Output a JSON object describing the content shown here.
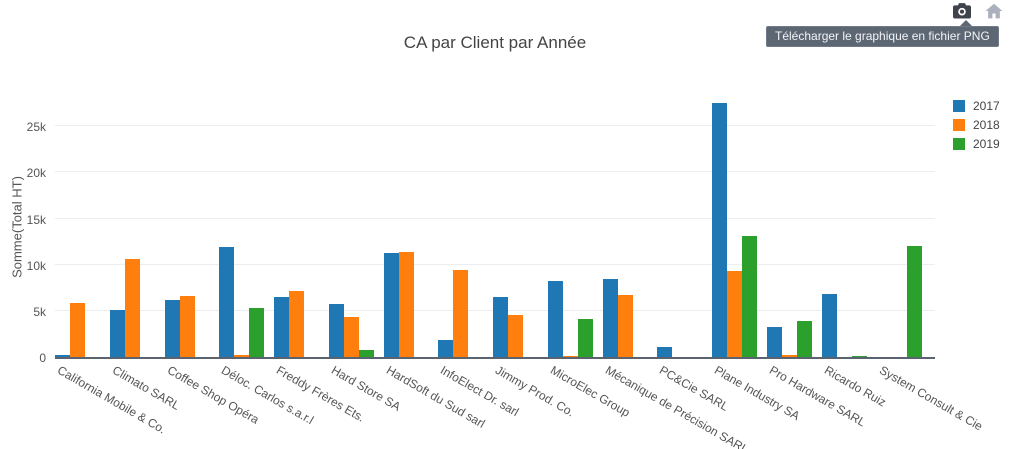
{
  "tooltip": {
    "text": "Télécharger le graphique en fichier PNG"
  },
  "modebar": {
    "icons": [
      "camera-icon",
      "home-icon"
    ]
  },
  "chart_data": {
    "type": "bar",
    "title": "CA par Client par Année",
    "xlabel": "",
    "ylabel": "Somme(Total HT)",
    "ylim": [
      0,
      28600
    ],
    "grid": true,
    "legend_position": "top-right",
    "yticks": [
      {
        "label": "0",
        "value": 0
      },
      {
        "label": "5k",
        "value": 5000
      },
      {
        "label": "10k",
        "value": 10000
      },
      {
        "label": "15k",
        "value": 15000
      },
      {
        "label": "20k",
        "value": 20000
      },
      {
        "label": "25k",
        "value": 25000
      }
    ],
    "categories": [
      "California Mobile & Co.",
      "Climato SARL",
      "Coffee Shop Opéra",
      "Déloc. Carlos s.a.r.l",
      "Freddy Frères Ets.",
      "Hard Store SA",
      "HardSoft du Sud sarl",
      "InfoElect Dr. sarl",
      "Jimmy Prod. Co.",
      "MicroElec Group",
      "Mécanique de Précision SARL",
      "PC&Cie SARL",
      "Plane Industry SA",
      "Pro Hardware SARL",
      "Ricardo Ruiz",
      "System Consult & Cie"
    ],
    "series": [
      {
        "name": "2017",
        "color": "#1f77b4",
        "values": [
          200,
          5100,
          6200,
          11900,
          6500,
          5700,
          11300,
          1800,
          6500,
          8200,
          8500,
          1100,
          27500,
          3200,
          6800,
          null
        ]
      },
      {
        "name": "2018",
        "color": "#ff7f0e",
        "values": [
          5900,
          10600,
          6600,
          200,
          7200,
          4300,
          11400,
          9400,
          4600,
          150,
          6700,
          null,
          9300,
          200,
          null,
          null
        ]
      },
      {
        "name": "2019",
        "color": "#2ca02c",
        "values": [
          null,
          null,
          null,
          5300,
          null,
          800,
          null,
          null,
          null,
          4100,
          null,
          null,
          13100,
          3900,
          150,
          12000
        ]
      }
    ]
  }
}
